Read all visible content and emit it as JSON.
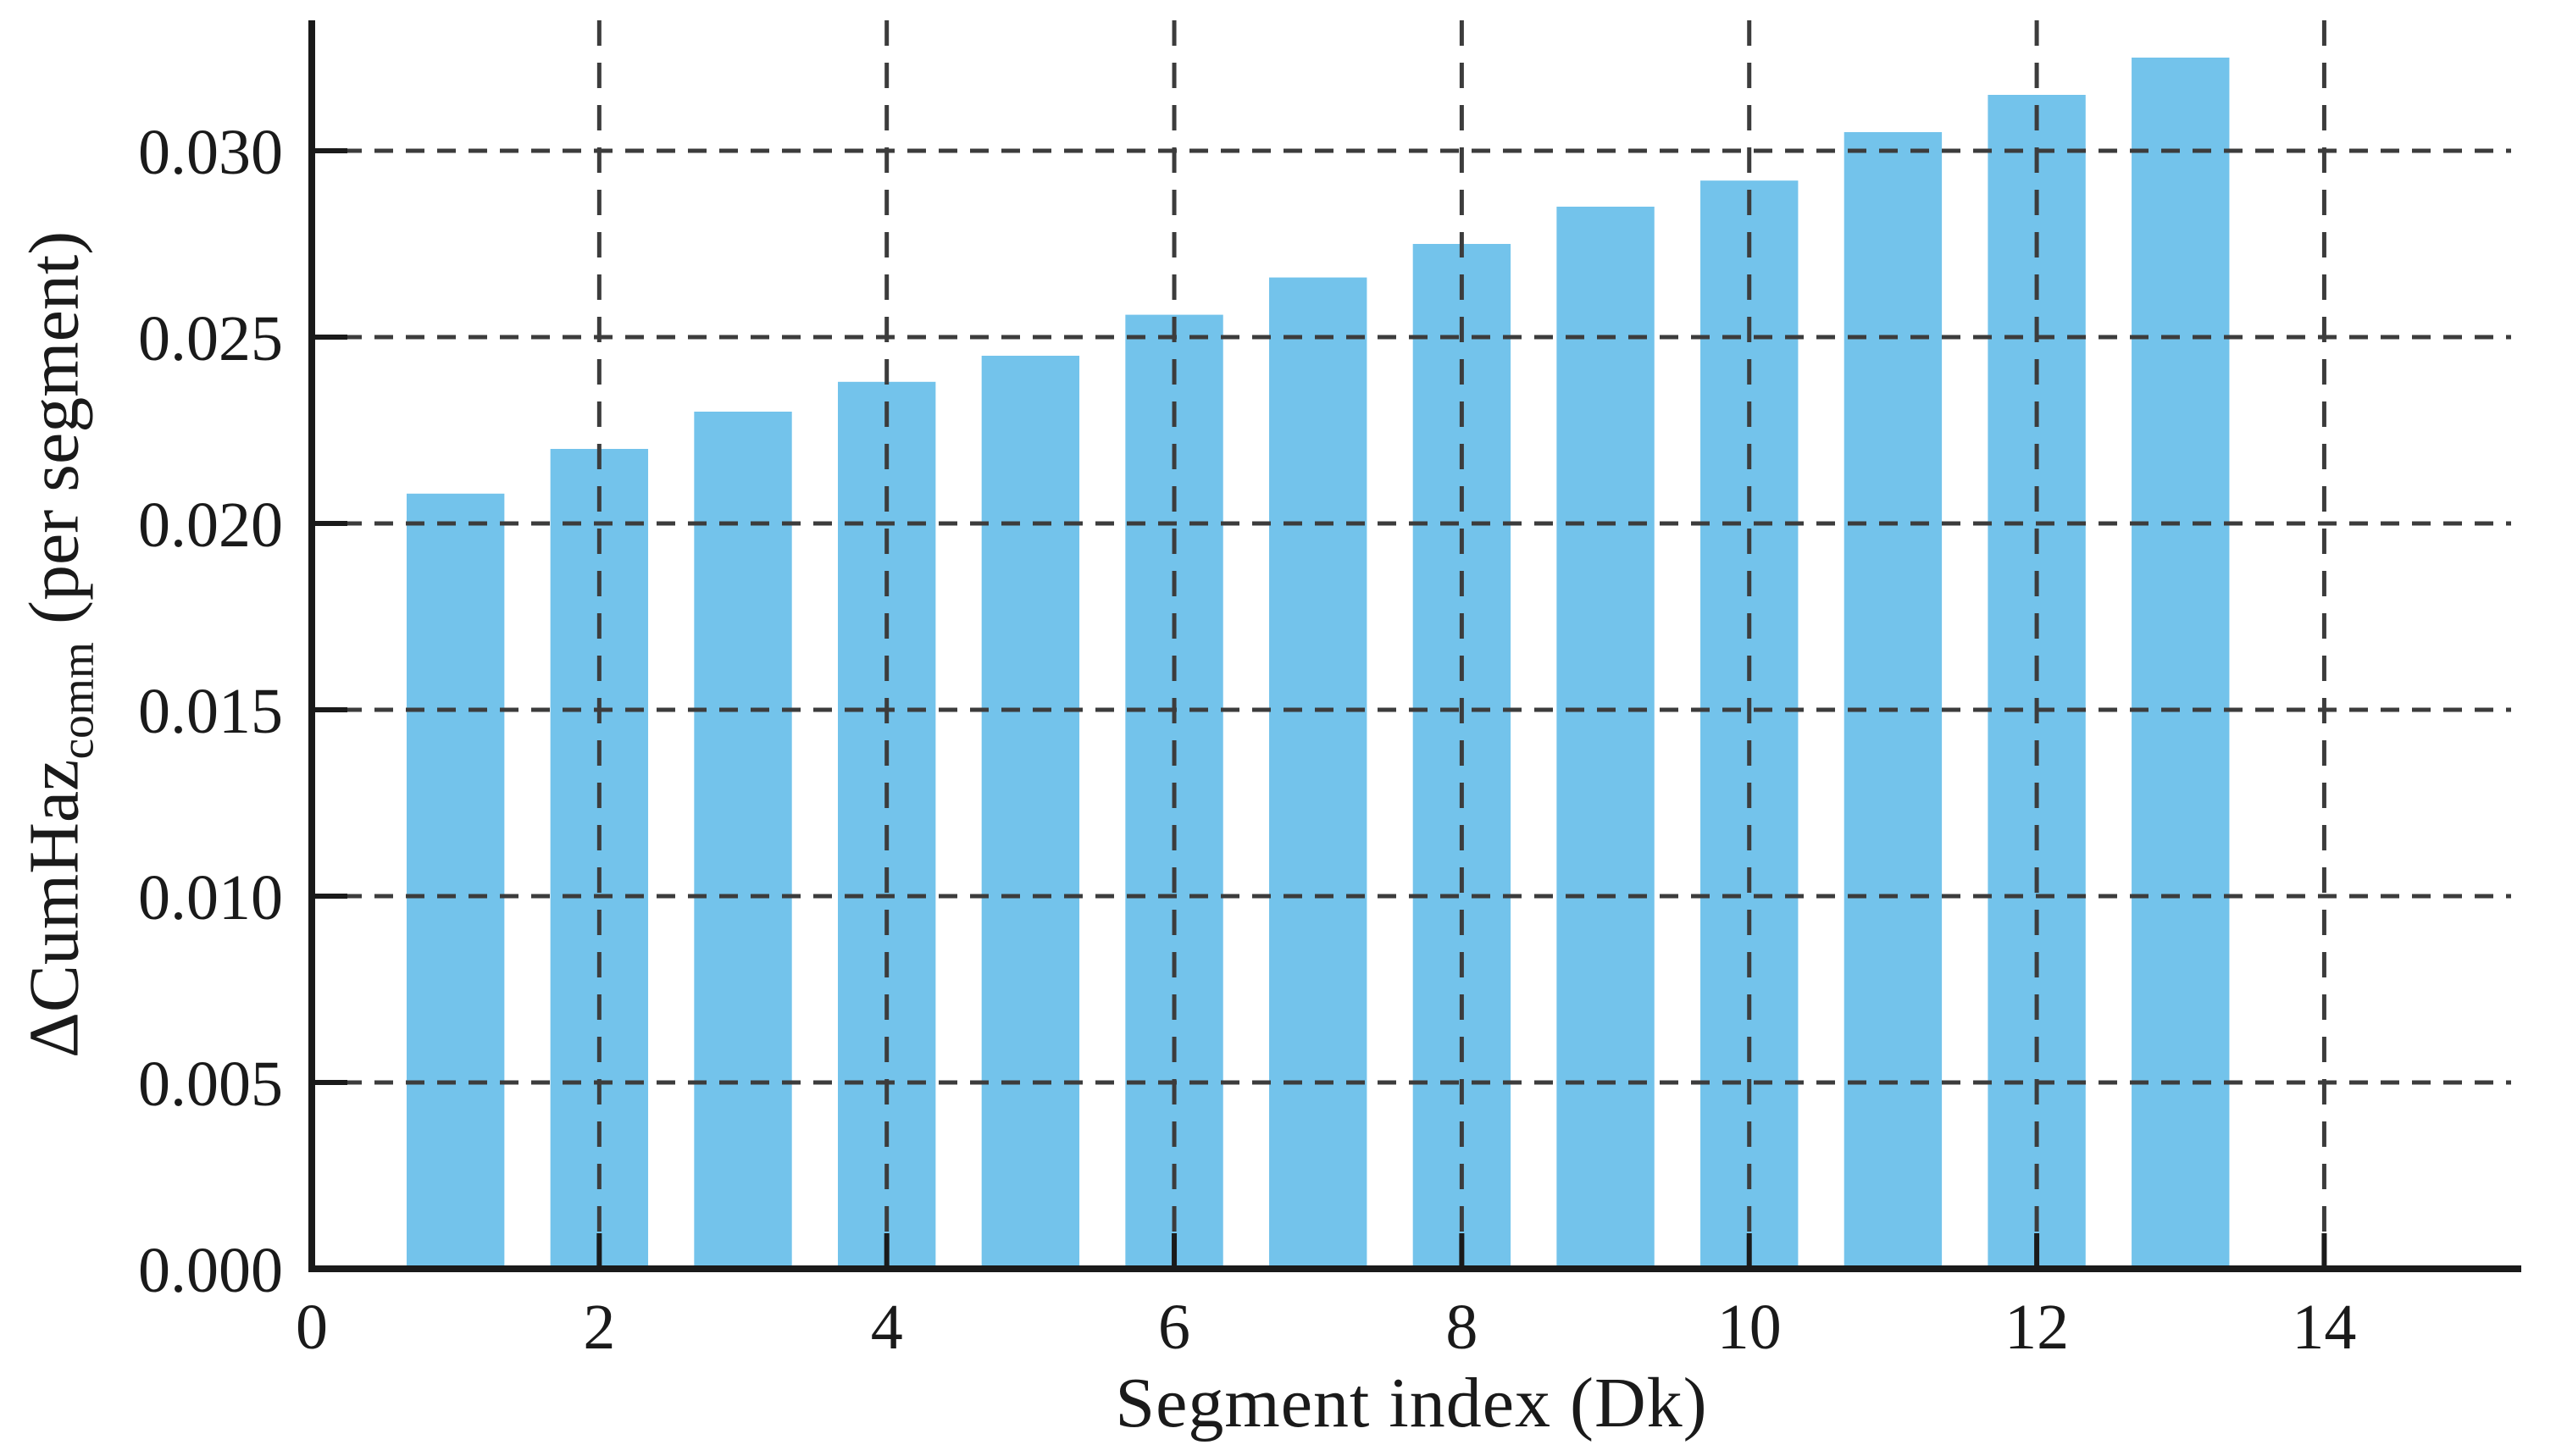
{
  "figure": {
    "background": "#ffffff"
  },
  "chart_data": {
    "type": "bar",
    "title": "",
    "xlabel": "Segment index (Dk)",
    "ylabel": {
      "prefix": "ΔCumHaz",
      "subscript": "comm",
      "suffix": " (per segment)"
    },
    "x": [
      1,
      2,
      3,
      4,
      5,
      6,
      7,
      8,
      9,
      10,
      11,
      12,
      13
    ],
    "values": [
      0.0208,
      0.022,
      0.023,
      0.0238,
      0.0245,
      0.0256,
      0.0266,
      0.0275,
      0.0285,
      0.0292,
      0.0305,
      0.0315,
      0.0325
    ],
    "xticks": [
      0,
      2,
      4,
      6,
      8,
      10,
      12,
      14
    ],
    "yticks": [
      "0.000",
      "0.005",
      "0.010",
      "0.015",
      "0.020",
      "0.025",
      "0.030"
    ],
    "xlim": [
      0,
      15.3
    ],
    "ylim": [
      0,
      0.0335
    ],
    "bar_width": 0.68,
    "bar_color": "#73c3eb",
    "grid_color": "#3c3c3c",
    "axis_color": "#1a1a1a",
    "grid_style": "dashed",
    "legend": "none"
  }
}
